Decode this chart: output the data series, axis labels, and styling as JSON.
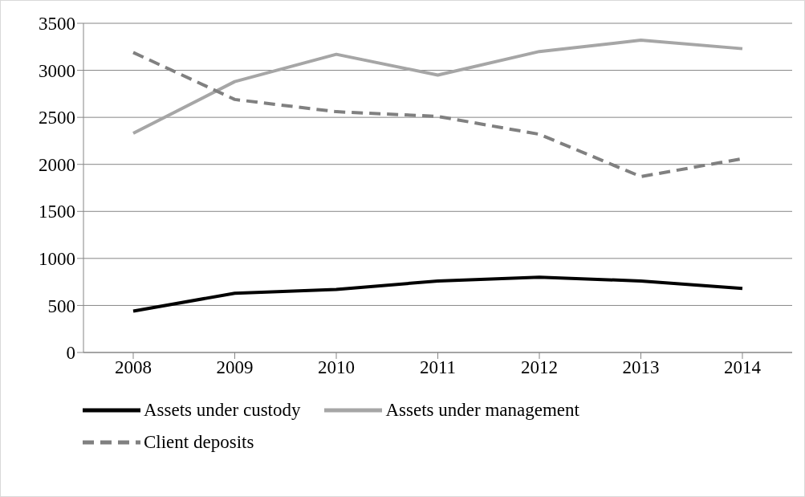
{
  "chart_data": {
    "type": "line",
    "categories": [
      "2008",
      "2009",
      "2010",
      "2011",
      "2012",
      "2013",
      "2014"
    ],
    "series": [
      {
        "name": "Assets under custody",
        "color": "#000000",
        "line_style": "solid",
        "values": [
          440,
          630,
          670,
          760,
          800,
          760,
          680
        ]
      },
      {
        "name": "Assets under management",
        "color": "#a6a6a6",
        "line_style": "solid",
        "values": [
          2330,
          2880,
          3170,
          2950,
          3200,
          3320,
          3230
        ]
      },
      {
        "name": "Client deposits",
        "color": "#808080",
        "line_style": "dashed",
        "values": [
          3190,
          2690,
          2560,
          2510,
          2320,
          1870,
          2060
        ]
      }
    ],
    "ylim": [
      0,
      3500
    ],
    "yticks": [
      0,
      500,
      1000,
      1500,
      2000,
      2500,
      3000,
      3500
    ],
    "grid": "y",
    "legend": "bottom",
    "marker": "none"
  }
}
